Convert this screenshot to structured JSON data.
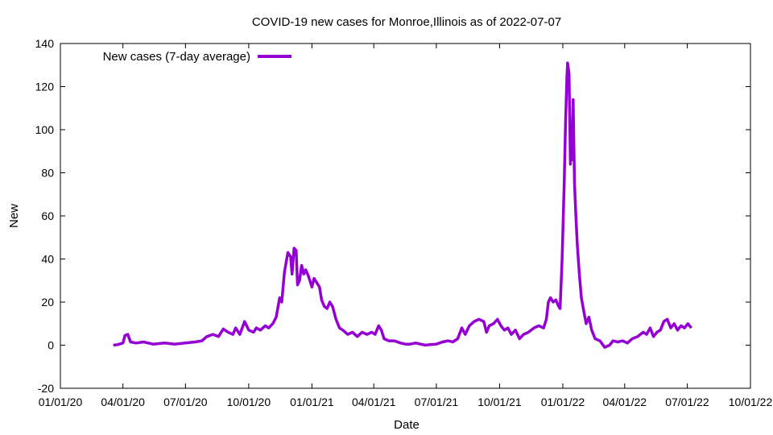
{
  "chart_data": {
    "type": "line",
    "title": "COVID-19 new cases for Monroe,Illinois as of 2022-07-07",
    "xlabel": "Date",
    "ylabel": "New",
    "xlim": [
      "2020-01-01",
      "2022-10-01"
    ],
    "ylim": [
      -20,
      140
    ],
    "x_ticks": [
      "01/01/20",
      "04/01/20",
      "07/01/20",
      "10/01/20",
      "01/01/21",
      "04/01/21",
      "07/01/21",
      "10/01/21",
      "01/01/22",
      "04/01/22",
      "07/01/22",
      "10/01/22"
    ],
    "y_ticks": [
      -20,
      0,
      20,
      40,
      60,
      80,
      100,
      120,
      140
    ],
    "grid": false,
    "legend_position": "top-left",
    "series": [
      {
        "name": "New cases (7-day average)",
        "color": "#9400d3",
        "points": [
          [
            "2020-03-18",
            0
          ],
          [
            "2020-03-25",
            0.3
          ],
          [
            "2020-04-01",
            1
          ],
          [
            "2020-04-04",
            4.5
          ],
          [
            "2020-04-08",
            5
          ],
          [
            "2020-04-12",
            1.5
          ],
          [
            "2020-04-20",
            1
          ],
          [
            "2020-05-01",
            1.5
          ],
          [
            "2020-05-15",
            0.5
          ],
          [
            "2020-06-01",
            1
          ],
          [
            "2020-06-15",
            0.5
          ],
          [
            "2020-07-01",
            1
          ],
          [
            "2020-07-15",
            1.5
          ],
          [
            "2020-07-25",
            2
          ],
          [
            "2020-08-01",
            4
          ],
          [
            "2020-08-10",
            5
          ],
          [
            "2020-08-18",
            4
          ],
          [
            "2020-08-25",
            7.5
          ],
          [
            "2020-09-01",
            6
          ],
          [
            "2020-09-08",
            5
          ],
          [
            "2020-09-12",
            8
          ],
          [
            "2020-09-18",
            5
          ],
          [
            "2020-09-25",
            11
          ],
          [
            "2020-10-01",
            7
          ],
          [
            "2020-10-08",
            6
          ],
          [
            "2020-10-12",
            8
          ],
          [
            "2020-10-18",
            7
          ],
          [
            "2020-10-25",
            9
          ],
          [
            "2020-10-30",
            8
          ],
          [
            "2020-11-05",
            10
          ],
          [
            "2020-11-10",
            13
          ],
          [
            "2020-11-15",
            22
          ],
          [
            "2020-11-18",
            20
          ],
          [
            "2020-11-22",
            34
          ],
          [
            "2020-11-27",
            43
          ],
          [
            "2020-12-01",
            41
          ],
          [
            "2020-12-03",
            33
          ],
          [
            "2020-12-06",
            45
          ],
          [
            "2020-12-09",
            44
          ],
          [
            "2020-12-11",
            28
          ],
          [
            "2020-12-14",
            30
          ],
          [
            "2020-12-17",
            37
          ],
          [
            "2020-12-20",
            33
          ],
          [
            "2020-12-23",
            35
          ],
          [
            "2020-12-27",
            32
          ],
          [
            "2021-01-01",
            27
          ],
          [
            "2021-01-04",
            31
          ],
          [
            "2021-01-08",
            29
          ],
          [
            "2021-01-12",
            27
          ],
          [
            "2021-01-15",
            21
          ],
          [
            "2021-01-19",
            18
          ],
          [
            "2021-01-23",
            17
          ],
          [
            "2021-01-27",
            20
          ],
          [
            "2021-01-31",
            18
          ],
          [
            "2021-02-05",
            12
          ],
          [
            "2021-02-10",
            8
          ],
          [
            "2021-02-15",
            7
          ],
          [
            "2021-02-22",
            5
          ],
          [
            "2021-03-01",
            6
          ],
          [
            "2021-03-08",
            4
          ],
          [
            "2021-03-15",
            6
          ],
          [
            "2021-03-22",
            5
          ],
          [
            "2021-03-29",
            6
          ],
          [
            "2021-04-03",
            5
          ],
          [
            "2021-04-08",
            9
          ],
          [
            "2021-04-12",
            7
          ],
          [
            "2021-04-16",
            3
          ],
          [
            "2021-04-23",
            2
          ],
          [
            "2021-05-01",
            2
          ],
          [
            "2021-05-10",
            1
          ],
          [
            "2021-05-17",
            0.5
          ],
          [
            "2021-05-24",
            0.5
          ],
          [
            "2021-06-01",
            1
          ],
          [
            "2021-06-08",
            0.5
          ],
          [
            "2021-06-15",
            0
          ],
          [
            "2021-06-22",
            0.3
          ],
          [
            "2021-07-01",
            0.5
          ],
          [
            "2021-07-10",
            1.5
          ],
          [
            "2021-07-18",
            2
          ],
          [
            "2021-07-25",
            1.5
          ],
          [
            "2021-08-01",
            3
          ],
          [
            "2021-08-07",
            8
          ],
          [
            "2021-08-12",
            5
          ],
          [
            "2021-08-18",
            9
          ],
          [
            "2021-08-25",
            11
          ],
          [
            "2021-09-01",
            12
          ],
          [
            "2021-09-08",
            11
          ],
          [
            "2021-09-12",
            6
          ],
          [
            "2021-09-16",
            9
          ],
          [
            "2021-09-22",
            10
          ],
          [
            "2021-09-28",
            12
          ],
          [
            "2021-10-03",
            9
          ],
          [
            "2021-10-08",
            7
          ],
          [
            "2021-10-13",
            8
          ],
          [
            "2021-10-18",
            5
          ],
          [
            "2021-10-24",
            7
          ],
          [
            "2021-10-30",
            3
          ],
          [
            "2021-11-05",
            5
          ],
          [
            "2021-11-12",
            6
          ],
          [
            "2021-11-20",
            8
          ],
          [
            "2021-11-27",
            9
          ],
          [
            "2021-12-04",
            8
          ],
          [
            "2021-12-08",
            12
          ],
          [
            "2021-12-11",
            20
          ],
          [
            "2021-12-14",
            22
          ],
          [
            "2021-12-18",
            20
          ],
          [
            "2021-12-22",
            21
          ],
          [
            "2021-12-26",
            18
          ],
          [
            "2021-12-28",
            17
          ],
          [
            "2021-12-31",
            40
          ],
          [
            "2022-01-03",
            75
          ],
          [
            "2022-01-05",
            104
          ],
          [
            "2022-01-07",
            125
          ],
          [
            "2022-01-08",
            131
          ],
          [
            "2022-01-10",
            126
          ],
          [
            "2022-01-12",
            84
          ],
          [
            "2022-01-13",
            103
          ],
          [
            "2022-01-14",
            86
          ],
          [
            "2022-01-16",
            114
          ],
          [
            "2022-01-18",
            75
          ],
          [
            "2022-01-20",
            60
          ],
          [
            "2022-01-22",
            47
          ],
          [
            "2022-01-25",
            33
          ],
          [
            "2022-01-28",
            22
          ],
          [
            "2022-02-01",
            15
          ],
          [
            "2022-02-04",
            10
          ],
          [
            "2022-02-08",
            13
          ],
          [
            "2022-02-12",
            7
          ],
          [
            "2022-02-17",
            3
          ],
          [
            "2022-02-24",
            2
          ],
          [
            "2022-03-03",
            -1
          ],
          [
            "2022-03-10",
            0
          ],
          [
            "2022-03-15",
            2
          ],
          [
            "2022-03-22",
            1.5
          ],
          [
            "2022-03-29",
            2
          ],
          [
            "2022-04-05",
            1
          ],
          [
            "2022-04-12",
            3
          ],
          [
            "2022-04-20",
            4
          ],
          [
            "2022-04-28",
            6
          ],
          [
            "2022-05-03",
            5
          ],
          [
            "2022-05-08",
            8
          ],
          [
            "2022-05-13",
            4
          ],
          [
            "2022-05-18",
            6
          ],
          [
            "2022-05-23",
            7
          ],
          [
            "2022-05-28",
            11
          ],
          [
            "2022-06-02",
            12
          ],
          [
            "2022-06-07",
            8
          ],
          [
            "2022-06-12",
            10
          ],
          [
            "2022-06-17",
            7
          ],
          [
            "2022-06-22",
            9
          ],
          [
            "2022-06-27",
            8
          ],
          [
            "2022-07-02",
            10
          ],
          [
            "2022-07-07",
            8
          ]
        ]
      }
    ]
  }
}
